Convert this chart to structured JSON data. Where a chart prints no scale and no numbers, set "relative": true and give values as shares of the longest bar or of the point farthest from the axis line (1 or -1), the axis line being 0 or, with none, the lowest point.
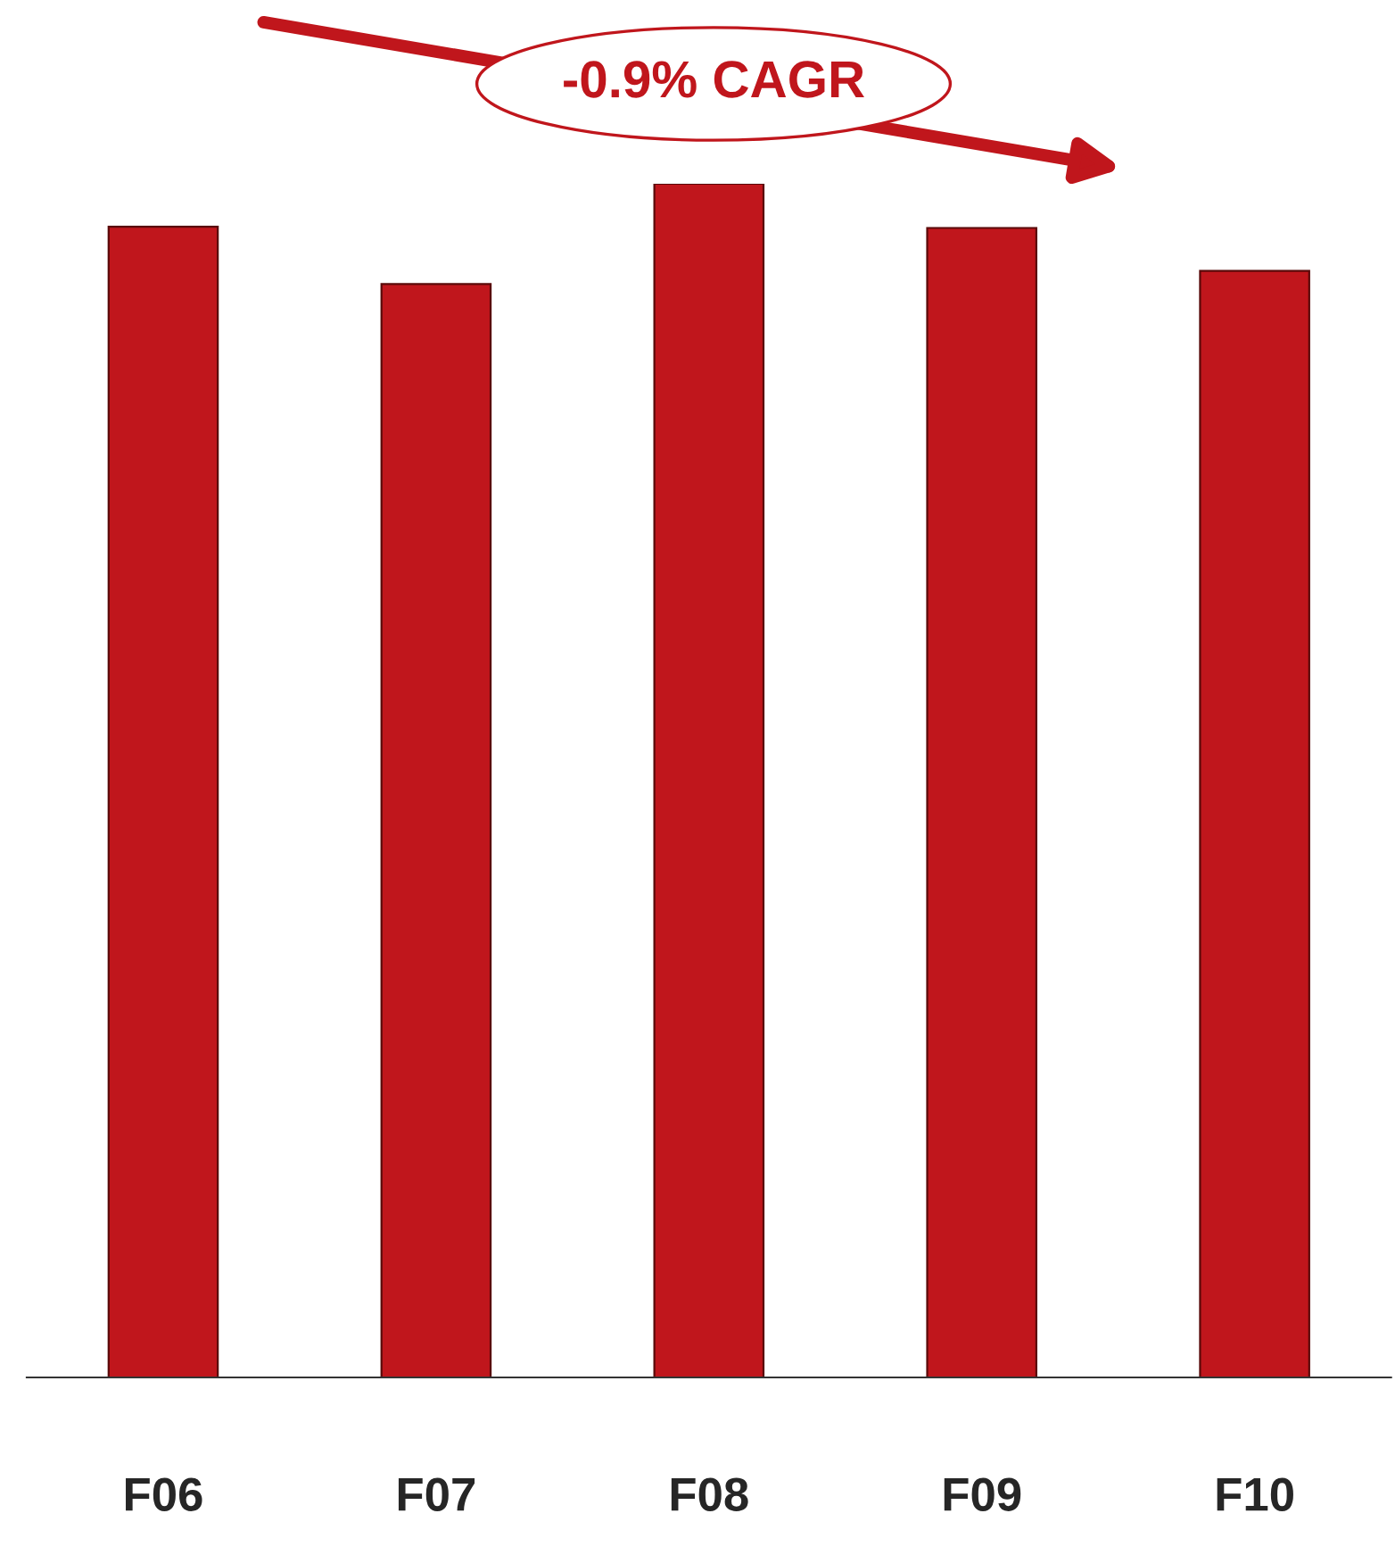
{
  "chart_data": {
    "type": "bar",
    "relative": true,
    "categories": [
      "F06",
      "F07",
      "F08",
      "F09",
      "F10"
    ],
    "values": [
      0.964,
      0.916,
      1.0,
      0.963,
      0.927
    ],
    "color": "#c0161c",
    "annotations": [
      "-0.9% CAGR"
    ],
    "grid": false,
    "legend": false
  }
}
